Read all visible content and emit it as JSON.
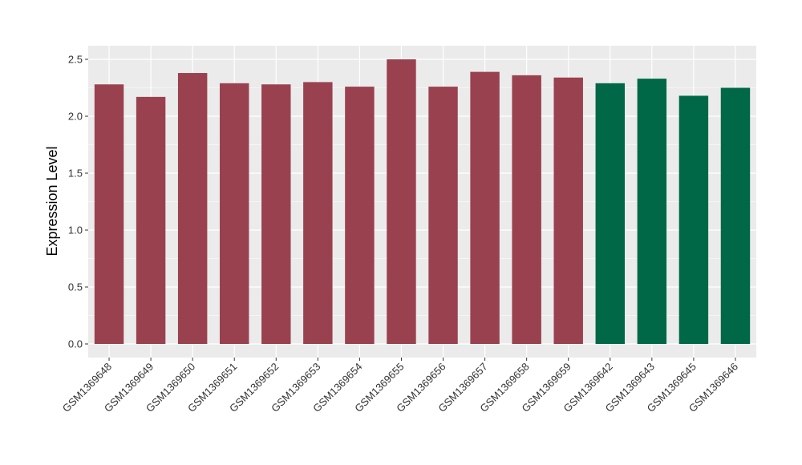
{
  "chart_data": {
    "type": "bar",
    "ylabel": "Expression Level",
    "xlabel": "",
    "ylim": [
      0,
      2.6
    ],
    "yticks": [
      "0.0",
      "0.5",
      "1.0",
      "1.5",
      "2.0",
      "2.5"
    ],
    "ytick_values": [
      0,
      0.5,
      1.0,
      1.5,
      2.0,
      2.5
    ],
    "grid": true,
    "categories": [
      "GSM1369648",
      "GSM1369649",
      "GSM1369650",
      "GSM1369651",
      "GSM1369652",
      "GSM1369653",
      "GSM1369654",
      "GSM1369655",
      "GSM1369656",
      "GSM1369657",
      "GSM1369658",
      "GSM1369659",
      "GSM1369642",
      "GSM1369643",
      "GSM1369645",
      "GSM1369646"
    ],
    "values": [
      2.28,
      2.17,
      2.38,
      2.29,
      2.28,
      2.3,
      2.26,
      2.5,
      2.26,
      2.39,
      2.36,
      2.34,
      2.29,
      2.33,
      2.18,
      2.25
    ],
    "bar_colors": [
      "#9a4150",
      "#9a4150",
      "#9a4150",
      "#9a4150",
      "#9a4150",
      "#9a4150",
      "#9a4150",
      "#9a4150",
      "#9a4150",
      "#9a4150",
      "#9a4150",
      "#9a4150",
      "#006846",
      "#006846",
      "#006846",
      "#006846"
    ],
    "panel_background": "#ebebeb",
    "grid_color": "#ffffff"
  }
}
